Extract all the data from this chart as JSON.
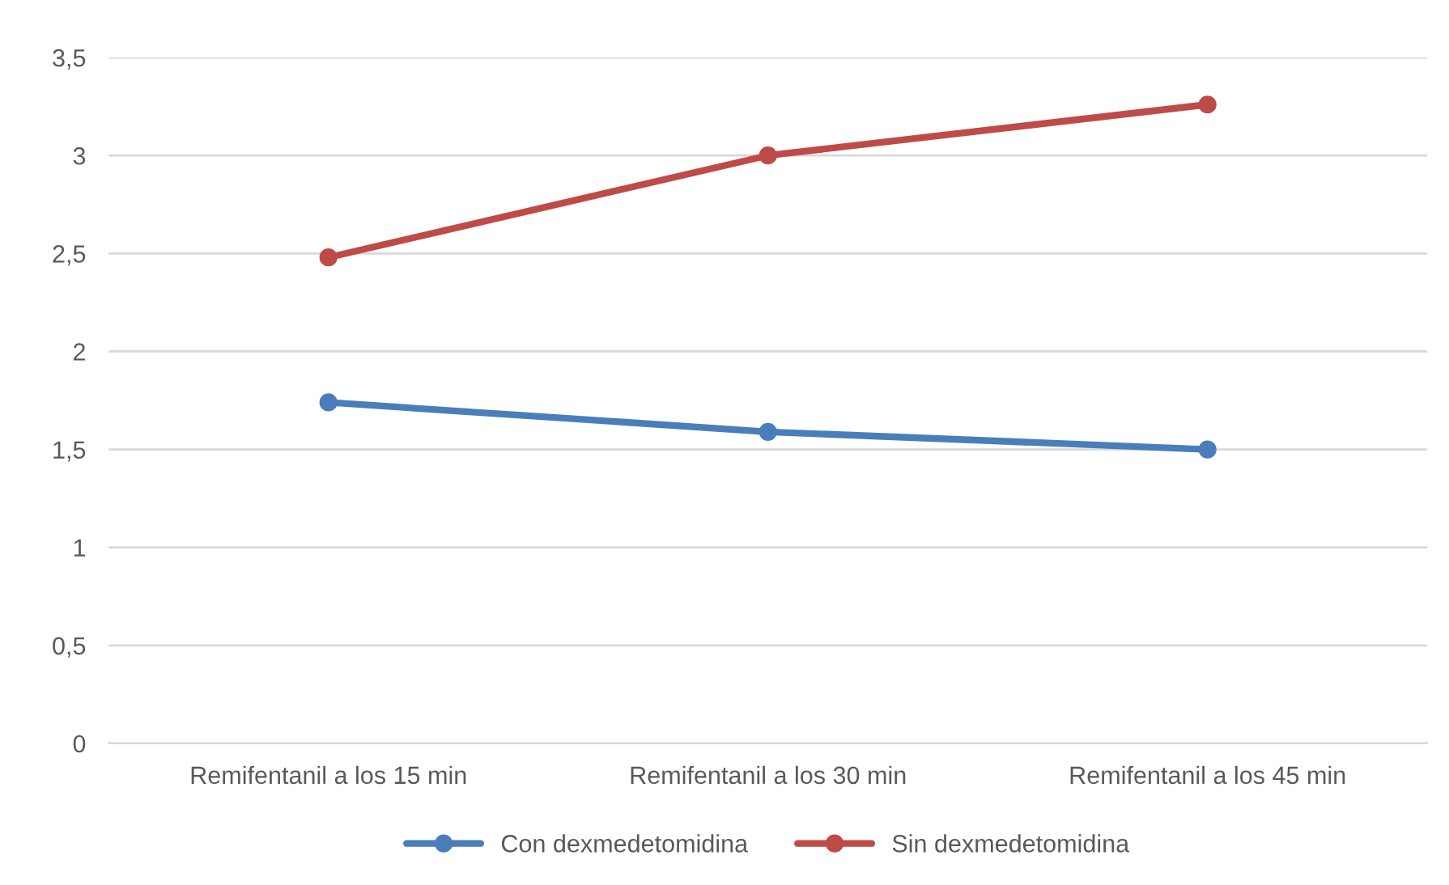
{
  "chart_data": {
    "type": "line",
    "categories": [
      "Remifentanil a los 15 min",
      "Remifentanil a los 30 min",
      "Remifentanil a los 45 min"
    ],
    "series": [
      {
        "name": "Con dexmedetomidina",
        "color": "#4a7ebb",
        "values": [
          1.74,
          1.59,
          1.5
        ]
      },
      {
        "name": "Sin dexmedetomidina",
        "color": "#be4b48",
        "values": [
          2.48,
          3.0,
          3.26
        ]
      }
    ],
    "ylim": [
      0,
      3.5
    ],
    "yticks": [
      0,
      {
        "value": 0.5,
        "label": "0,5"
      },
      1,
      {
        "value": 1.5,
        "label": "1,5"
      },
      2,
      {
        "value": 2.5,
        "label": "2,5"
      },
      3,
      {
        "value": 3.5,
        "label": "3,5"
      }
    ],
    "grid": "y",
    "legend": "bottom",
    "marker": "circle",
    "line_style": "solid"
  }
}
